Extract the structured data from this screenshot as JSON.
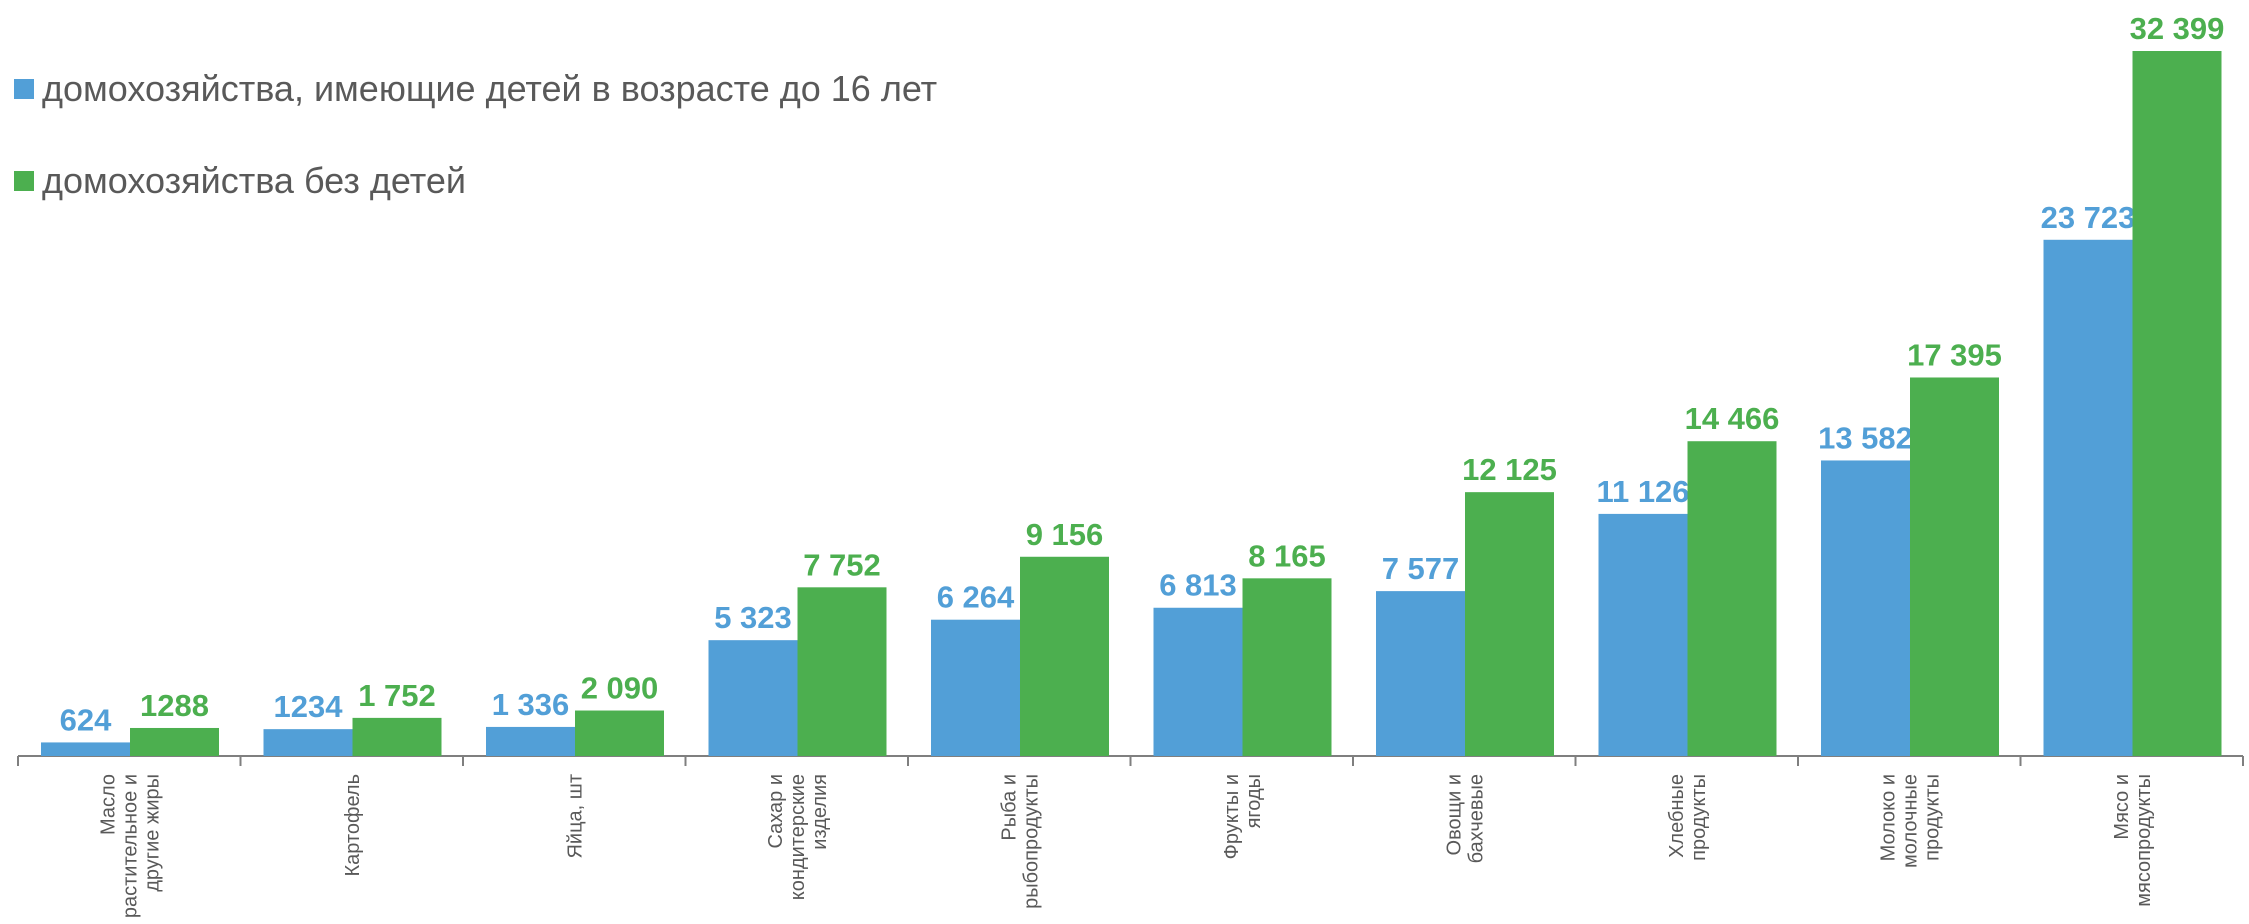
{
  "chart_data": {
    "type": "bar",
    "categories": [
      [
        "Масло",
        "растительное и",
        "другие жиры"
      ],
      [
        "Картофель"
      ],
      [
        "Яйца, шт"
      ],
      [
        "Сахар и",
        "кондитерские",
        "изделия"
      ],
      [
        "Рыба и",
        "рыбопродукты"
      ],
      [
        "Фрукты и",
        "ягоды"
      ],
      [
        "Овощи и",
        "бахчевые"
      ],
      [
        "Хлебные",
        "продукты"
      ],
      [
        "Молоко и",
        "молочные",
        "продукты"
      ],
      [
        "Мясо и",
        "мясопродукты"
      ]
    ],
    "series": [
      {
        "name": "домохозяйства, имеющие детей в возрасте до 16 лет",
        "color": "#529fd7",
        "label_color": "#529fd7",
        "values": [
          624,
          1234,
          1336,
          5323,
          6264,
          6813,
          7577,
          11126,
          13582,
          23723
        ],
        "labels": [
          "624",
          "1234",
          "1 336",
          "5 323",
          "6 264",
          "6 813",
          "7 577",
          "11 126",
          "13 582",
          "23 723"
        ]
      },
      {
        "name": "домохозяйства без детей",
        "color": "#4caf4f",
        "label_color": "#4caf4f",
        "values": [
          1288,
          1752,
          2090,
          7752,
          9156,
          8165,
          12125,
          14466,
          17395,
          32399
        ],
        "labels": [
          "1288",
          "1 752",
          "2 090",
          "7 752",
          "9 156",
          "8 165",
          "12 125",
          "14 466",
          "17 395",
          "32 399"
        ]
      }
    ],
    "title": "",
    "xlabel": "",
    "ylabel": "",
    "ylim": [
      0,
      32399
    ],
    "grid": false,
    "legend_position": "top-left"
  }
}
